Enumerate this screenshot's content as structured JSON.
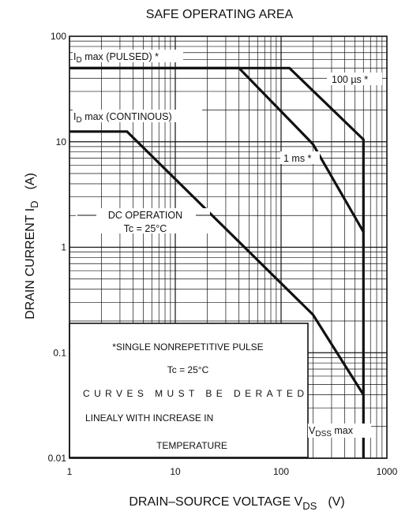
{
  "chart_data": {
    "type": "line",
    "title": "SAFE OPERATING AREA",
    "xlabel": "DRAIN–SOURCE VOLTAGE  V",
    "xlabel_sub": "DS",
    "xlabel_unit": "(V)",
    "ylabel": "DRAIN CURRENT  I",
    "ylabel_sub": "D",
    "ylabel_unit": "(A)",
    "x_scale": "log",
    "y_scale": "log",
    "xlim": [
      1,
      1000
    ],
    "ylim": [
      0.01,
      100
    ],
    "grid": true,
    "x_ticks": [
      {
        "value": 1,
        "label": "1"
      },
      {
        "value": 10,
        "label": "10"
      },
      {
        "value": 100,
        "label": "100"
      },
      {
        "value": 1000,
        "label": "1000"
      }
    ],
    "y_ticks": [
      {
        "value": 0.01,
        "label": "0.01"
      },
      {
        "value": 0.1,
        "label": "0.1"
      },
      {
        "value": 1,
        "label": "1"
      },
      {
        "value": 10,
        "label": "10"
      },
      {
        "value": 100,
        "label": "100"
      }
    ],
    "series": [
      {
        "name": "100 µs *",
        "x": [
          1,
          120,
          600,
          600
        ],
        "y": [
          50,
          50,
          10.5,
          0.01
        ]
      },
      {
        "name": "1 ms *",
        "x": [
          1,
          40,
          200,
          600
        ],
        "y": [
          50,
          50,
          9.5,
          1.4
        ]
      },
      {
        "name": "DC OPERATION",
        "x": [
          1,
          3.5,
          200,
          600
        ],
        "y": [
          12.5,
          12.5,
          0.23,
          0.04
        ]
      }
    ],
    "annotations": {
      "id_pulsed": {
        "prefix": "I",
        "sub": "D",
        "rest": " max (PULSED) *"
      },
      "id_cont": {
        "prefix": "I",
        "sub": "D",
        "rest": " max (CONTINOUS)"
      },
      "label_100us": "100 µs *",
      "label_1ms": "1 ms *",
      "dc_operation": "DC OPERATION",
      "dc_tc": "Tc = 25°C",
      "vdss": {
        "prefix": "V",
        "sub": "DSS",
        "rest": " max"
      },
      "note": [
        "*SINGLE NONREPETITIVE PULSE",
        "Tc = 25°C",
        "CURVES  MUST  BE  DERATED",
        "LINEALY WITH INCREASE IN",
        "TEMPERATURE"
      ]
    }
  }
}
